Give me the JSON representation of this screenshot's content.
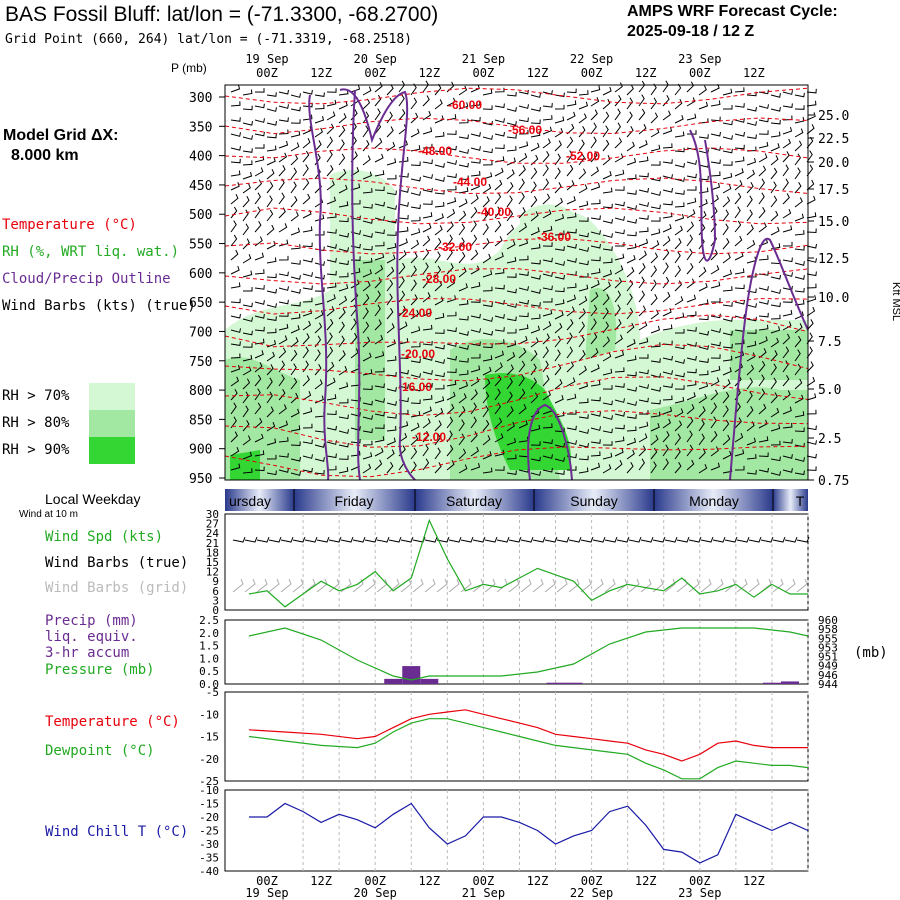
{
  "header": {
    "title": "BAS Fossil Bluff:  lat/lon = (-71.3300, -68.2700)",
    "grid_point": "Grid Point (660, 264) lat/lon = (-71.3319, -68.2518)",
    "forecast_label": "AMPS WRF Forecast Cycle:",
    "forecast_cycle": "2025-09-18 / 12  Z"
  },
  "legend": {
    "model_grid_label": "Model Grid ΔX:",
    "model_grid_value": "8.000 km",
    "temperature": "Temperature (°C)",
    "rh": "RH (%, WRT liq. wat.)",
    "cloud": "Cloud/Precip Outline",
    "wind": "Wind Barbs (kts) (true)",
    "rh70": "RH > 70%",
    "rh80": "RH > 80%",
    "rh90": "RH > 90%",
    "colors": {
      "temperature": "#e8000b",
      "rh": "#22aa22",
      "cloud": "#6a2c91",
      "rh70": "#d4f8d4",
      "rh80": "#a2e8a2",
      "rh90": "#34d634"
    }
  },
  "time_axis": {
    "hours": [
      "00Z",
      "12Z",
      "00Z",
      "12Z",
      "00Z",
      "12Z",
      "00Z",
      "12Z",
      "00Z",
      "12Z"
    ],
    "dates": [
      "19 Sep",
      "20 Sep",
      "21 Sep",
      "22 Sep",
      "23 Sep"
    ]
  },
  "weekday_bar": {
    "label": "Local Weekday",
    "days": [
      "ursday",
      "Friday",
      "Saturday",
      "Sunday",
      "Monday",
      "T"
    ]
  },
  "panels": {
    "wind_title": "Wind at 10 m",
    "wind_spd": "Wind Spd (kts)",
    "wind_barbs_true": "Wind Barbs (true)",
    "wind_barbs_grid": "Wind Barbs (grid)",
    "precip": "Precip (mm)",
    "precip_2": "liq. equiv.",
    "precip_3": "3-hr accum",
    "pressure": "Pressure (mb)",
    "pressure_unit": "(mb)",
    "temperature": "Temperature (°C)",
    "dewpoint": "Dewpoint (°C)",
    "windchill": "Wind Chill T (°C)",
    "p_axis_title": "P (mb)",
    "kft_title": "Kft MSL"
  },
  "chart_data": [
    {
      "type": "area",
      "title": "Time-height cross section",
      "ylabel": "P (mb)",
      "p_ticks": [
        "300",
        "350",
        "400",
        "450",
        "500",
        "550",
        "600",
        "650",
        "700",
        "750",
        "800",
        "850",
        "900",
        "950"
      ],
      "kft_ticks": [
        "25.0",
        "22.5",
        "20.0",
        "17.5",
        "15.0",
        "12.5",
        "10.0",
        "7.5",
        "5.0",
        "2.5",
        "0.75"
      ],
      "isotherm_labels": [
        "-60.00",
        "-56.00",
        "-52.00",
        "-48.00",
        "-44.00",
        "-40.00",
        "-36.00",
        "-32.00",
        "-28.00",
        "-24.00",
        "-20.00",
        "-16.00",
        "-12.00"
      ]
    },
    {
      "type": "line",
      "title": "Wind Spd (kts)",
      "y_ticks": [
        "30",
        "27",
        "24",
        "21",
        "18",
        "15",
        "12",
        "9",
        "6",
        "3",
        "0"
      ],
      "ylim": [
        0,
        30
      ],
      "x_hours": [
        0,
        6,
        12,
        18,
        24,
        30,
        36,
        42,
        48,
        54,
        60,
        66,
        72,
        78,
        84,
        90,
        96,
        102,
        108,
        114,
        120,
        126,
        132,
        138,
        144,
        150
      ],
      "wind_speed": [
        5,
        6,
        1,
        5,
        9,
        6,
        8,
        12,
        6,
        10,
        28,
        16,
        6,
        8,
        7,
        10,
        13,
        11,
        9,
        3,
        6,
        8,
        7,
        6,
        10,
        5,
        6,
        8,
        4,
        8,
        5,
        5
      ],
      "wind_speed_x": [
        -6,
        0,
        6,
        12,
        18,
        24,
        30,
        36,
        42,
        48,
        54,
        60,
        66,
        72,
        78,
        84,
        90,
        96,
        102,
        108,
        114,
        120,
        126,
        132,
        138,
        144,
        150,
        156,
        162,
        168,
        174,
        180
      ]
    },
    {
      "type": "line",
      "title": "Pressure (mb)",
      "series": [
        {
          "name": "Pressure (mb)",
          "x": [
            -6,
            6,
            18,
            30,
            42,
            48,
            54,
            66,
            78,
            90,
            102,
            114,
            126,
            138,
            150,
            162,
            174,
            180
          ],
          "values": [
            956,
            958,
            955,
            950,
            946,
            945,
            946,
            946,
            946,
            947,
            949,
            954,
            957,
            958,
            958,
            958,
            957,
            956
          ]
        }
      ],
      "left_ticks": [
        "2.5",
        "2.0",
        "1.5",
        "1.0",
        "0.5",
        "0.0"
      ],
      "right_ticks": [
        "960",
        "958",
        "955",
        "953",
        "951",
        "949",
        "946",
        "944"
      ],
      "precip_mm": [
        {
          "x": 42,
          "value": 0.2
        },
        {
          "x": 48,
          "value": 0.7
        },
        {
          "x": 54,
          "value": 0.2
        },
        {
          "x": 96,
          "value": 0.05
        },
        {
          "x": 102,
          "value": 0.05
        },
        {
          "x": 168,
          "value": 0.05
        },
        {
          "x": 174,
          "value": 0.1
        }
      ]
    },
    {
      "type": "line",
      "title": "Temperature / Dewpoint",
      "y_ticks": [
        "-5",
        "-10",
        "-15",
        "-20",
        "-25"
      ],
      "ylim": [
        -25,
        -5
      ],
      "x": [
        -6,
        6,
        18,
        30,
        36,
        42,
        48,
        54,
        60,
        66,
        72,
        78,
        84,
        90,
        96,
        102,
        108,
        114,
        120,
        126,
        132,
        138,
        144,
        150,
        156,
        162,
        168,
        174,
        180
      ],
      "series": [
        {
          "name": "Temperature (°C)",
          "values": [
            -13.5,
            -14,
            -14.5,
            -15.5,
            -15,
            -13,
            -11,
            -10,
            -9.5,
            -9,
            -10,
            -11,
            -12,
            -13,
            -14.5,
            -15,
            -15.5,
            -16,
            -16.5,
            -18,
            -19,
            -20.5,
            -19,
            -16.5,
            -16,
            -17,
            -17.5,
            -17.5,
            -17.5
          ]
        },
        {
          "name": "Dewpoint (°C)",
          "values": [
            -15,
            -16,
            -17,
            -17.5,
            -16.5,
            -14,
            -12,
            -11,
            -11,
            -12,
            -13,
            -14,
            -15,
            -16,
            -17,
            -17.5,
            -18,
            -18.5,
            -19,
            -21,
            -22.5,
            -24.5,
            -24.5,
            -22,
            -20.5,
            -21,
            -21.5,
            -21.5,
            -22
          ]
        }
      ]
    },
    {
      "type": "line",
      "title": "Wind Chill T (°C)",
      "y_ticks": [
        "-10",
        "-15",
        "-20",
        "-25",
        "-30",
        "-35",
        "-40"
      ],
      "ylim": [
        -40,
        -10
      ],
      "x": [
        -6,
        0,
        6,
        12,
        18,
        24,
        30,
        36,
        42,
        48,
        54,
        60,
        66,
        72,
        78,
        84,
        90,
        96,
        102,
        108,
        114,
        120,
        126,
        132,
        138,
        144,
        150,
        156,
        162,
        168,
        174,
        180
      ],
      "values": [
        -20,
        -20,
        -15,
        -18,
        -22,
        -19,
        -21,
        -24,
        -19,
        -15,
        -24,
        -30,
        -27,
        -20,
        -20,
        -22,
        -25,
        -30,
        -27,
        -25,
        -18,
        -16,
        -23,
        -32,
        -33,
        -37,
        -34,
        -19,
        -22,
        -25,
        -22,
        -25
      ]
    }
  ]
}
